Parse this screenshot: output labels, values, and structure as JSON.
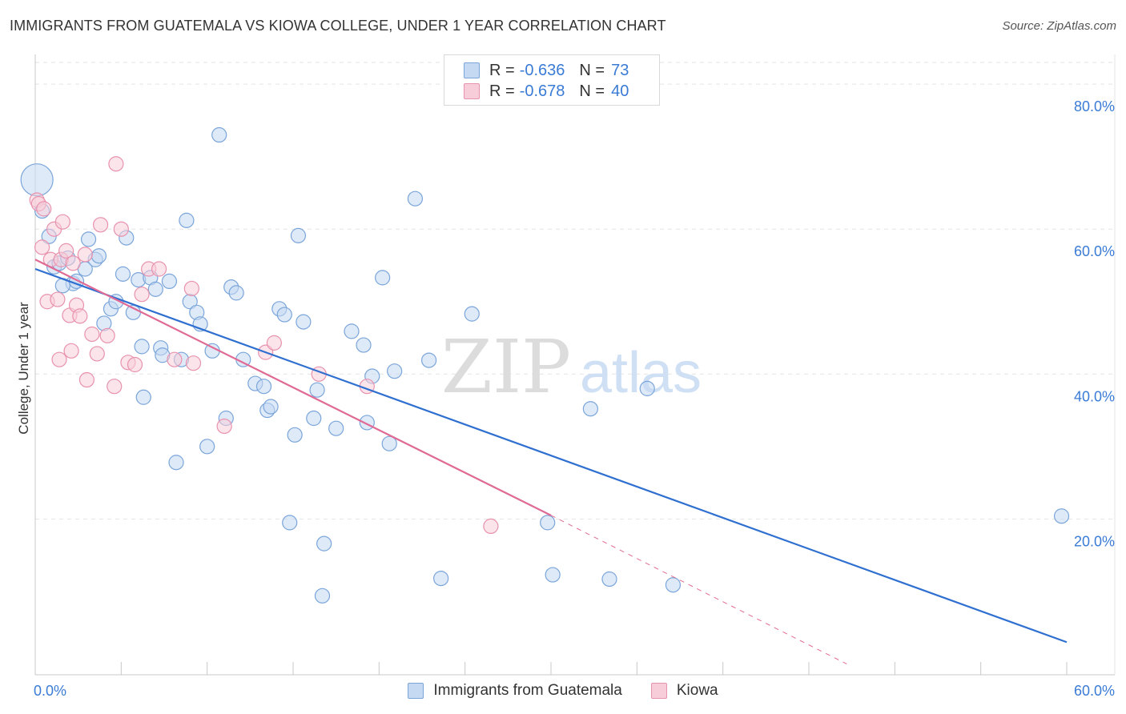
{
  "title": "IMMIGRANTS FROM GUATEMALA VS KIOWA COLLEGE, UNDER 1 YEAR CORRELATION CHART",
  "source": "Source: ZipAtlas.com",
  "watermark": {
    "zip": "ZIP",
    "atlas": "atlas"
  },
  "colors": {
    "blue_fill": "#c5d9f2",
    "blue_stroke": "#7aa5da",
    "blue_line": "#2f6fd0",
    "pink_fill": "#f7cdd9",
    "pink_stroke": "#e892ae",
    "pink_line": "#e06a94",
    "tick_text": "#3a7bd5",
    "grid": "#e3e3e3"
  },
  "legend_top": [
    {
      "r_label": "R =",
      "r_value": "-0.636",
      "n_label": "N =",
      "n_value": "73"
    },
    {
      "r_label": "R =",
      "r_value": "-0.678",
      "n_label": "N =",
      "n_value": "40"
    }
  ],
  "legend_bottom": [
    "Immigrants from Guatemala",
    "Kiowa"
  ],
  "chart_data": {
    "type": "scatter",
    "title": "IMMIGRANTS FROM GUATEMALA VS KIOWA COLLEGE, UNDER 1 YEAR CORRELATION CHART",
    "xlabel": "",
    "ylabel": "College, Under 1 year",
    "xlim": [
      0,
      60
    ],
    "ylim": [
      -1.5,
      83
    ],
    "x_tick_labels": [
      {
        "value": 0,
        "label": "0.0%"
      },
      {
        "value": 60,
        "label": "60.0%"
      }
    ],
    "y_tick_labels": [
      {
        "value": 20,
        "label": "20.0%"
      },
      {
        "value": 40,
        "label": "40.0%"
      },
      {
        "value": 60,
        "label": "60.0%"
      },
      {
        "value": 80,
        "label": "80.0%"
      }
    ],
    "series": [
      {
        "name": "Immigrants from Guatemala",
        "color": "blue",
        "R": -0.636,
        "N": 73,
        "trend": {
          "x": [
            0,
            60
          ],
          "y": [
            54.5,
            3.0
          ],
          "dashed_to": null
        },
        "points": [
          [
            0.1,
            66.8,
            20
          ],
          [
            0.4,
            62.5,
            12
          ],
          [
            0.8,
            59.0,
            9
          ],
          [
            1.1,
            54.8,
            9
          ],
          [
            1.4,
            55.3,
            9
          ],
          [
            1.9,
            56.0,
            9
          ],
          [
            2.2,
            52.5,
            9
          ],
          [
            2.4,
            52.8,
            9
          ],
          [
            1.6,
            52.2,
            9
          ],
          [
            2.9,
            54.5,
            9
          ],
          [
            3.1,
            58.6,
            9
          ],
          [
            3.5,
            55.8,
            9
          ],
          [
            3.7,
            56.3,
            9
          ],
          [
            4.0,
            47.0,
            9
          ],
          [
            4.4,
            49.0,
            9
          ],
          [
            4.7,
            50.0,
            9
          ],
          [
            5.1,
            53.8,
            9
          ],
          [
            5.3,
            58.8,
            9
          ],
          [
            5.7,
            48.5,
            9
          ],
          [
            6.0,
            53.0,
            9
          ],
          [
            6.2,
            43.8,
            9
          ],
          [
            6.3,
            36.8,
            9
          ],
          [
            6.7,
            53.3,
            9
          ],
          [
            7.0,
            51.7,
            9
          ],
          [
            7.3,
            43.6,
            9
          ],
          [
            7.4,
            42.6,
            9
          ],
          [
            7.8,
            52.8,
            9
          ],
          [
            8.2,
            27.8,
            9
          ],
          [
            8.5,
            42.0,
            9
          ],
          [
            8.8,
            61.2,
            9
          ],
          [
            9.0,
            50.0,
            9
          ],
          [
            9.4,
            48.5,
            9
          ],
          [
            9.6,
            46.9,
            9
          ],
          [
            10.0,
            30.0,
            9
          ],
          [
            10.3,
            43.2,
            9
          ],
          [
            10.7,
            73.0,
            9
          ],
          [
            11.1,
            33.9,
            9
          ],
          [
            11.4,
            52.0,
            9
          ],
          [
            11.7,
            51.2,
            9
          ],
          [
            12.1,
            42.0,
            9
          ],
          [
            12.8,
            38.7,
            9
          ],
          [
            13.3,
            38.3,
            9
          ],
          [
            13.5,
            35.0,
            9
          ],
          [
            13.7,
            35.5,
            9
          ],
          [
            14.2,
            49.0,
            9
          ],
          [
            14.5,
            48.2,
            9
          ],
          [
            14.8,
            19.5,
            9
          ],
          [
            15.1,
            31.6,
            9
          ],
          [
            15.6,
            47.2,
            9
          ],
          [
            15.3,
            59.1,
            9
          ],
          [
            16.2,
            33.9,
            9
          ],
          [
            16.4,
            37.8,
            9
          ],
          [
            16.8,
            16.6,
            9
          ],
          [
            16.7,
            9.4,
            9
          ],
          [
            17.5,
            32.5,
            9
          ],
          [
            18.4,
            45.9,
            9
          ],
          [
            19.1,
            44.0,
            9
          ],
          [
            19.3,
            33.3,
            9
          ],
          [
            19.6,
            39.7,
            9
          ],
          [
            20.2,
            53.3,
            9
          ],
          [
            20.6,
            30.4,
            9
          ],
          [
            20.9,
            40.4,
            9
          ],
          [
            22.1,
            64.2,
            9
          ],
          [
            22.9,
            41.9,
            9
          ],
          [
            23.6,
            11.8,
            9
          ],
          [
            25.4,
            48.3,
            9
          ],
          [
            29.8,
            19.5,
            9
          ],
          [
            30.1,
            12.3,
            9
          ],
          [
            32.3,
            35.2,
            9
          ],
          [
            33.4,
            11.7,
            9
          ],
          [
            35.6,
            38.0,
            9
          ],
          [
            37.1,
            10.9,
            9
          ],
          [
            59.7,
            20.4,
            9
          ]
        ]
      },
      {
        "name": "Kiowa",
        "color": "pink",
        "R": -0.678,
        "N": 40,
        "trend": {
          "x": [
            0,
            30
          ],
          "y": [
            55.8,
            20.5
          ],
          "dashed_to": [
            47.2,
            0.0
          ]
        },
        "points": [
          [
            0.1,
            64.0,
            9
          ],
          [
            0.2,
            63.5,
            9
          ],
          [
            0.4,
            57.5,
            9
          ],
          [
            0.5,
            62.8,
            9
          ],
          [
            0.7,
            50.0,
            9
          ],
          [
            0.9,
            55.8,
            9
          ],
          [
            1.1,
            60.0,
            9
          ],
          [
            1.3,
            50.3,
            9
          ],
          [
            1.4,
            42.0,
            9
          ],
          [
            1.5,
            55.8,
            9
          ],
          [
            1.6,
            61.0,
            9
          ],
          [
            1.8,
            57.0,
            9
          ],
          [
            2.0,
            48.1,
            9
          ],
          [
            2.1,
            43.2,
            9
          ],
          [
            2.4,
            49.5,
            9
          ],
          [
            2.2,
            55.3,
            9
          ],
          [
            2.6,
            48.0,
            9
          ],
          [
            2.9,
            56.5,
            9
          ],
          [
            3.0,
            39.2,
            9
          ],
          [
            3.3,
            45.5,
            9
          ],
          [
            3.6,
            42.8,
            9
          ],
          [
            3.8,
            60.6,
            9
          ],
          [
            4.2,
            45.3,
            9
          ],
          [
            4.6,
            38.3,
            9
          ],
          [
            4.7,
            69.0,
            9
          ],
          [
            5.0,
            60.0,
            9
          ],
          [
            5.4,
            41.6,
            9
          ],
          [
            5.8,
            41.3,
            9
          ],
          [
            6.2,
            51.0,
            9
          ],
          [
            6.6,
            54.5,
            9
          ],
          [
            7.2,
            54.5,
            9
          ],
          [
            8.1,
            42.0,
            9
          ],
          [
            9.1,
            51.8,
            9
          ],
          [
            9.2,
            41.5,
            9
          ],
          [
            11.0,
            32.8,
            9
          ],
          [
            13.4,
            43.0,
            9
          ],
          [
            13.9,
            44.3,
            9
          ],
          [
            16.5,
            40.0,
            9
          ],
          [
            19.3,
            38.3,
            9
          ],
          [
            26.5,
            19.0,
            9
          ]
        ]
      }
    ]
  }
}
